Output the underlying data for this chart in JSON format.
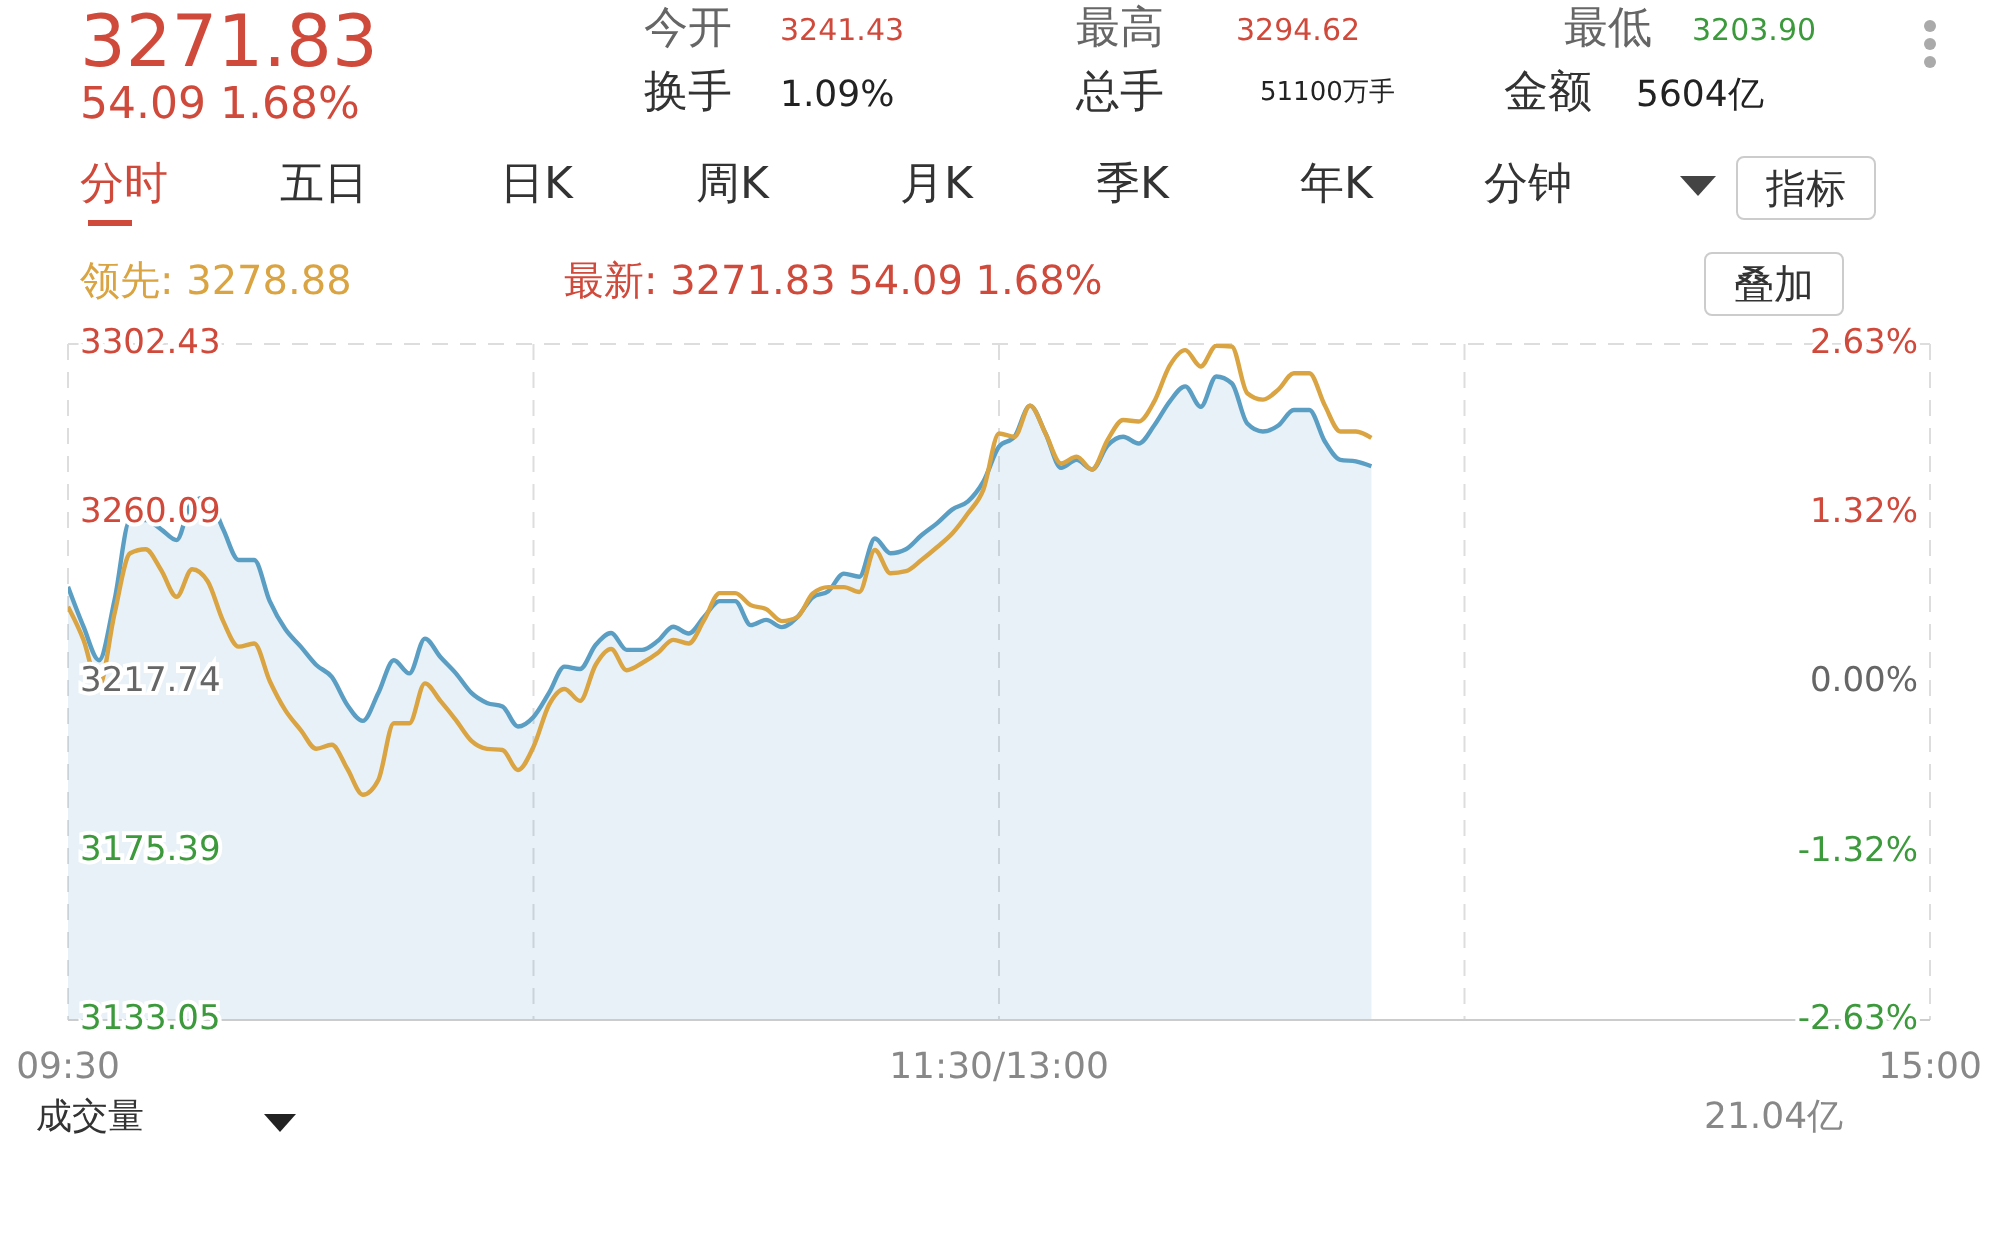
{
  "chart_data": {
    "type": "line",
    "categories": [
      "09:30",
      null,
      null,
      null,
      null,
      null,
      null,
      null,
      null,
      null,
      null,
      null,
      null,
      null,
      null,
      null,
      null,
      null,
      null,
      null,
      null,
      null,
      null,
      null,
      null,
      null,
      null,
      null,
      null,
      null,
      null,
      null,
      null,
      null,
      null,
      null,
      null,
      null,
      null,
      null,
      null,
      null,
      null,
      null,
      null,
      null,
      null,
      null,
      null,
      null,
      null,
      null,
      null,
      null,
      null,
      null,
      null,
      null,
      null,
      null,
      "11:30/13:00",
      null,
      null,
      null,
      null,
      null,
      null,
      null,
      null,
      null,
      null,
      null,
      null,
      null,
      null,
      null,
      null,
      null,
      null,
      null,
      null,
      null,
      null,
      null,
      null,
      null,
      null,
      null,
      null,
      null,
      null,
      null,
      null,
      null,
      null,
      null,
      null,
      null,
      null,
      null,
      null,
      null,
      null,
      null,
      null,
      null,
      null,
      null,
      null,
      null,
      null,
      null,
      null,
      null,
      null,
      null,
      null,
      null,
      null,
      null,
      "15:00"
    ],
    "ylim": [
      3133.05,
      3302.43
    ],
    "yticks": [
      3133.05,
      3175.39,
      3217.74,
      3260.09,
      3302.43
    ],
    "y2lim": [
      -2.63,
      2.63
    ],
    "y2ticks": [
      {
        "value": -2.63,
        "label": "-2.63%"
      },
      {
        "value": -1.32,
        "label": "-1.32%"
      },
      {
        "value": 0,
        "label": "0.00%"
      },
      {
        "value": 1.32,
        "label": "1.32%"
      },
      {
        "value": 2.63,
        "label": "2.63%"
      }
    ],
    "grid": true,
    "series": [
      {
        "type": "area",
        "color": "#5b9ec4",
        "values": [
          3241.6,
          3231.6,
          3223.2,
          3238.3,
          3258.3,
          3258.3,
          3256,
          3253.3,
          3263,
          3264,
          3256,
          3248.3,
          3248.3,
          3238,
          3231,
          3226.6,
          3222,
          3219,
          3212,
          3208,
          3215,
          3223.2,
          3219.9,
          3228.6,
          3224,
          3219.9,
          3215,
          3212.5,
          3211.6,
          3206.6,
          3209,
          3215,
          3221.6,
          3221,
          3227,
          3230,
          3225.8,
          3225.8,
          3228,
          3231.6,
          3229.9,
          3234.1,
          3238,
          3238,
          3232,
          3233.3,
          3231.5,
          3234,
          3239,
          3240.5,
          3244.9,
          3244.1,
          3253.7,
          3250,
          3251,
          3254.5,
          3257.5,
          3261,
          3263,
          3268,
          3276.7,
          3279.2,
          3287,
          3280,
          3271.4,
          3273.4,
          3271,
          3277,
          3279.2,
          3277.5,
          3282,
          3288,
          3291.8,
          3286.7,
          3294.3,
          3292.6,
          3282.5,
          3280.5,
          3282,
          3285.9,
          3285.9,
          3278,
          3273.4,
          3273,
          3271.8,
          null,
          null,
          null,
          null,
          null,
          null,
          null,
          null,
          null,
          null,
          null,
          null,
          null,
          null,
          null,
          null,
          null,
          null,
          null,
          null,
          null,
          null,
          null,
          null,
          null,
          null,
          null,
          null,
          null,
          null,
          null,
          null,
          null,
          null,
          null,
          null
        ]
      },
      {
        "color": "#d9a441",
        "values": [
          3236.6,
          3228.3,
          3216.6,
          3234.9,
          3250,
          3251,
          3245.8,
          3239.1,
          3246,
          3243,
          3233,
          3226.6,
          3227.4,
          3218,
          3210.7,
          3205.7,
          3201,
          3202,
          3196,
          3189.5,
          3193.2,
          3207.4,
          3207.4,
          3217.4,
          3213,
          3208.2,
          3203,
          3201,
          3200.7,
          3195.7,
          3201.5,
          3212,
          3216,
          3213,
          3222,
          3226,
          3220.7,
          3222.5,
          3225,
          3228.3,
          3227.4,
          3233.3,
          3240,
          3240,
          3237,
          3236,
          3233,
          3234,
          3239.9,
          3241.5,
          3241.5,
          3240.3,
          3250.8,
          3245,
          3245.5,
          3248.3,
          3251.5,
          3255.0,
          3260,
          3266,
          3280.0,
          3279.2,
          3287,
          3280,
          3272.5,
          3274.2,
          3271,
          3278.4,
          3283.4,
          3283,
          3288,
          3297,
          3300.9,
          3296.8,
          3302.0,
          3301.8,
          3290.1,
          3288.5,
          3291,
          3295.1,
          3295.1,
          3287,
          3280.5,
          3280.5,
          3278.9,
          null,
          null,
          null,
          null,
          null,
          null,
          null,
          null,
          null,
          null,
          null,
          null,
          null,
          null,
          null,
          null,
          null,
          null,
          null,
          null,
          null,
          null,
          null,
          null,
          null,
          null,
          null,
          null,
          null,
          null,
          null,
          null,
          null,
          null,
          null,
          null
        ]
      }
    ],
    "annotations": [
      "3271.83",
      "54.09 1.68%",
      "今开",
      "3241.43",
      "最高",
      "3294.62",
      "最低",
      "3203.90",
      "换手",
      "1.09%",
      "总手",
      "51100万手",
      "金额",
      "5604亿",
      "分时",
      "五日",
      "日K",
      "周K",
      "月K",
      "季K",
      "年K",
      "分钟",
      "指标",
      "领先: 3278.88",
      "最新: 3271.83 54.09 1.68%",
      "叠加",
      "成交量",
      "21.04亿"
    ]
  }
}
